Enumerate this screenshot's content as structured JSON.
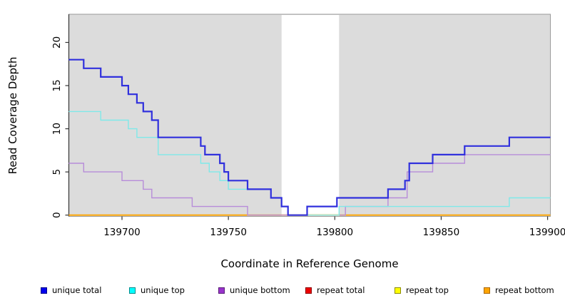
{
  "figure": {
    "x_axis_title": "Coordinate in Reference Genome",
    "y_axis_title": "Read Coverage Depth"
  },
  "chart_data": {
    "type": "line",
    "subtype": "step",
    "title": "",
    "xlabel": "Coordinate in Reference Genome",
    "ylabel": "Read Coverage Depth",
    "xlim": [
      139675,
      139901
    ],
    "ylim": [
      0,
      23.3
    ],
    "x_ticks": [
      139700,
      139750,
      139800,
      139850,
      139900
    ],
    "y_ticks": [
      0,
      5,
      10,
      15,
      20
    ],
    "grid": false,
    "legend_position": "bottom",
    "panel_color": "#dcdcdc",
    "masked_white_band_x": [
      139775,
      139802
    ],
    "series": [
      {
        "name": "repeat total",
        "color": "#cc0000",
        "width": 1.4,
        "steps": [
          [
            139675,
            0
          ]
        ]
      },
      {
        "name": "repeat top",
        "color": "#eeee00",
        "width": 1.4,
        "steps": [
          [
            139675,
            0
          ]
        ]
      },
      {
        "name": "repeat bottom",
        "color": "#ffa500",
        "width": 1.8,
        "steps": [
          [
            139675,
            0
          ]
        ]
      },
      {
        "name": "unique bottom",
        "color": "#b78cd9",
        "width": 1.4,
        "steps": [
          [
            139675,
            6
          ],
          [
            139682,
            5
          ],
          [
            139700,
            4
          ],
          [
            139710,
            3
          ],
          [
            139714,
            2
          ],
          [
            139733,
            1
          ],
          [
            139759,
            0
          ],
          [
            139805,
            1
          ],
          [
            139825,
            2
          ],
          [
            139834,
            5
          ],
          [
            139846,
            6
          ],
          [
            139861,
            7
          ]
        ]
      },
      {
        "name": "unique top",
        "color": "#7fe9e9",
        "width": 1.4,
        "steps": [
          [
            139675,
            12
          ],
          [
            139690,
            11
          ],
          [
            139703,
            10
          ],
          [
            139707,
            9
          ],
          [
            139717,
            7
          ],
          [
            139737,
            6
          ],
          [
            139741,
            5
          ],
          [
            139746,
            4
          ],
          [
            139750,
            3
          ],
          [
            139770,
            2
          ],
          [
            139775,
            1
          ],
          [
            139778,
            0
          ],
          [
            139802,
            1
          ],
          [
            139882,
            2
          ]
        ]
      },
      {
        "name": "unique total",
        "color": "#3030dd",
        "width": 2.2,
        "steps": [
          [
            139675,
            18
          ],
          [
            139682,
            17
          ],
          [
            139690,
            16
          ],
          [
            139700,
            15
          ],
          [
            139703,
            14
          ],
          [
            139707,
            13
          ],
          [
            139710,
            12
          ],
          [
            139714,
            11
          ],
          [
            139717,
            9
          ],
          [
            139737,
            8
          ],
          [
            139739,
            7
          ],
          [
            139746,
            6
          ],
          [
            139748,
            5
          ],
          [
            139750,
            4
          ],
          [
            139759,
            3
          ],
          [
            139770,
            2
          ],
          [
            139775,
            1
          ],
          [
            139778,
            0
          ],
          [
            139787,
            1
          ],
          [
            139801,
            2
          ],
          [
            139825,
            3
          ],
          [
            139833,
            4
          ],
          [
            139835,
            6
          ],
          [
            139846,
            7
          ],
          [
            139861,
            8
          ],
          [
            139882,
            9
          ]
        ]
      }
    ],
    "legend": [
      {
        "label": "unique total",
        "fill": "#0000ee",
        "border": "#000088"
      },
      {
        "label": "unique top",
        "fill": "#00ffff",
        "border": "#008b8b"
      },
      {
        "label": "unique bottom",
        "fill": "#9933cc",
        "border": "#5a1e78"
      },
      {
        "label": "repeat total",
        "fill": "#ee0000",
        "border": "#8b0000"
      },
      {
        "label": "repeat top",
        "fill": "#ffff00",
        "border": "#8b8b00"
      },
      {
        "label": "repeat bottom",
        "fill": "#ffa500",
        "border": "#aa6600"
      }
    ]
  }
}
